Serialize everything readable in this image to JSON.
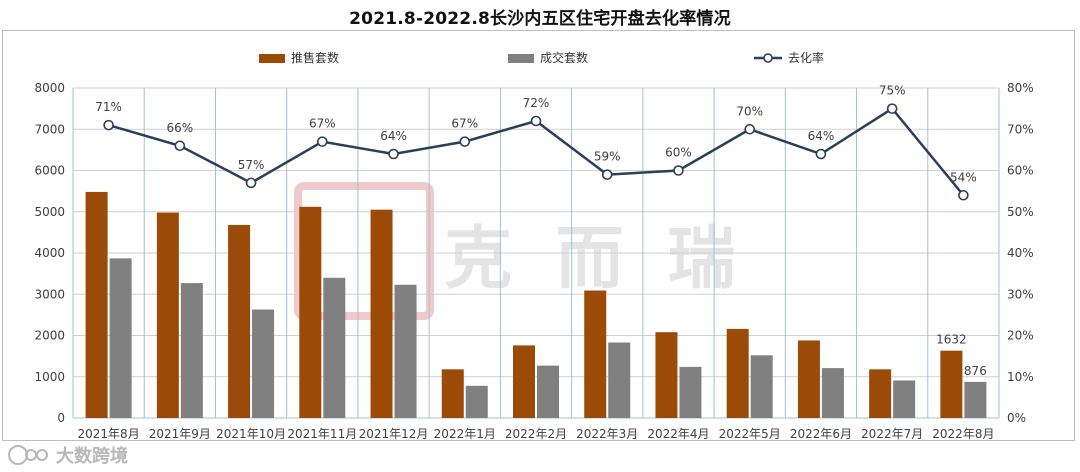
{
  "title": "2021.8-2022.8长沙内五区住宅开盘去化率情况",
  "watermark": {
    "center_text": "克 而 瑞",
    "bottom_text": "大数跨境"
  },
  "chart_data": {
    "type": "bar",
    "title": "2021.8-2022.8长沙内五区住宅开盘去化率情况",
    "categories": [
      "2021年8月",
      "2021年9月",
      "2021年10月",
      "2021年11月",
      "2021年12月",
      "2022年1月",
      "2022年2月",
      "2022年3月",
      "2022年4月",
      "2022年5月",
      "2022年6月",
      "2022年7月",
      "2022年8月"
    ],
    "series": [
      {
        "name": "推售套数",
        "type": "bar",
        "axis": "left",
        "color": "#9c4a07",
        "values": [
          5480,
          4980,
          4680,
          5120,
          5050,
          1180,
          1760,
          3090,
          2080,
          2160,
          1880,
          1180,
          1632
        ]
      },
      {
        "name": "成交套数",
        "type": "bar",
        "axis": "left",
        "color": "#808080",
        "values": [
          3870,
          3270,
          2630,
          3400,
          3230,
          780,
          1270,
          1830,
          1240,
          1520,
          1210,
          910,
          876
        ]
      },
      {
        "name": "去化率",
        "type": "line",
        "axis": "right",
        "color": "#2b3e5c",
        "values": [
          71,
          66,
          57,
          67,
          64,
          67,
          72,
          59,
          60,
          70,
          64,
          75,
          54
        ],
        "labels": [
          "71%",
          "66%",
          "57%",
          "67%",
          "64%",
          "67%",
          "72%",
          "59%",
          "60%",
          "70%",
          "64%",
          "75%",
          "54%"
        ]
      }
    ],
    "bar_data_labels": [
      {
        "series": 0,
        "index": 12,
        "text": "1632"
      },
      {
        "series": 1,
        "index": 12,
        "text": "876"
      }
    ],
    "y_left": {
      "min": 0,
      "max": 8000,
      "ticks": [
        "0",
        "1000",
        "2000",
        "3000",
        "4000",
        "5000",
        "6000",
        "7000",
        "8000"
      ]
    },
    "y_right": {
      "min": 0,
      "max": 80,
      "ticks": [
        "0%",
        "10%",
        "20%",
        "30%",
        "40%",
        "50%",
        "60%",
        "70%",
        "80%"
      ]
    },
    "legend_position": "top",
    "grid": true
  }
}
